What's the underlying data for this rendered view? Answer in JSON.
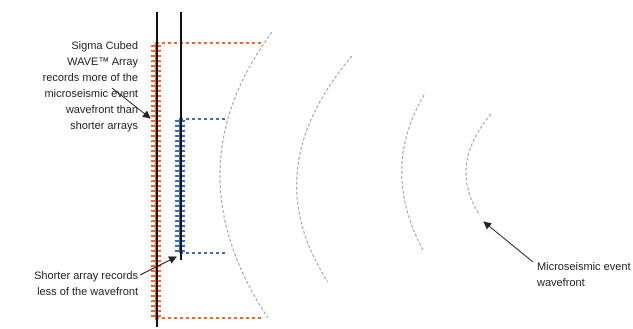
{
  "labels": {
    "sigma_array": [
      "Sigma Cubed",
      "WAVE™ Array",
      "records more of the",
      "microseismic event",
      "wavefront than",
      "shorter arrays"
    ],
    "short_array": [
      "Shorter array records",
      "less of the wavefront"
    ],
    "wavefront": [
      "Microseismic event",
      "wavefront"
    ]
  },
  "colors": {
    "long_array": "#ea6b2d",
    "short_array": "#3a6fb0",
    "well_line": "#111111",
    "wavefront_arc": "#9a9a9a",
    "arrow": "#222222"
  },
  "icons": {
    "array_pointer": "arrow-icon",
    "short_array_pointer": "arrow-icon",
    "wavefront_pointer": "arrow-icon"
  }
}
